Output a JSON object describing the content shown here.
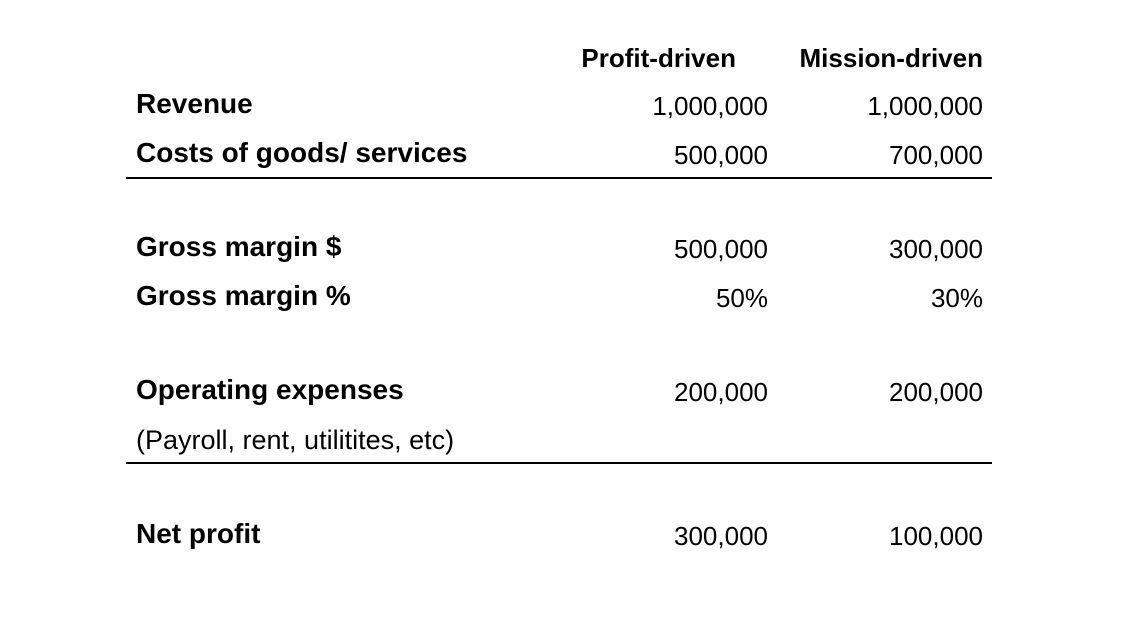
{
  "columns": {
    "profit": "Profit-driven",
    "mission": "Mission-driven"
  },
  "rows": [
    {
      "label": "Revenue",
      "profit": "1,000,000",
      "mission": "1,000,000"
    },
    {
      "label": "Costs of goods/ services",
      "profit": "500,000",
      "mission": "700,000"
    },
    {
      "label": "Gross margin $",
      "profit": "500,000",
      "mission": "300,000"
    },
    {
      "label": "Gross margin %",
      "profit": "50%",
      "mission": "30%"
    },
    {
      "label": "Operating expenses",
      "profit": "200,000",
      "mission": "200,000"
    },
    {
      "label": "(Payroll, rent, utilitites, etc)"
    },
    {
      "label": "Net profit",
      "profit": "300,000",
      "mission": "100,000"
    }
  ]
}
